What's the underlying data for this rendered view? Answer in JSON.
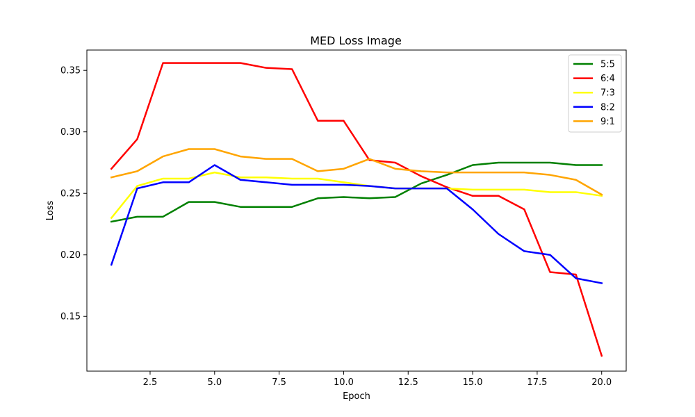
{
  "chart_data": {
    "type": "line",
    "title": "MED Loss Image",
    "xlabel": "Epoch",
    "ylabel": "Loss",
    "xlim": [
      0.05,
      20.95
    ],
    "ylim": [
      0.1055,
      0.3665
    ],
    "xticks": [
      2.5,
      5.0,
      7.5,
      10.0,
      12.5,
      15.0,
      17.5,
      20.0
    ],
    "xtick_labels": [
      "2.5",
      "5.0",
      "7.5",
      "10.0",
      "12.5",
      "15.0",
      "17.5",
      "20.0"
    ],
    "yticks": [
      0.15,
      0.2,
      0.25,
      0.3,
      0.35
    ],
    "ytick_labels": [
      "0.15",
      "0.20",
      "0.25",
      "0.30",
      "0.35"
    ],
    "grid": false,
    "legend_position": "top-right",
    "x": [
      1,
      2,
      3,
      4,
      5,
      6,
      7,
      8,
      9,
      10,
      11,
      12,
      13,
      14,
      15,
      16,
      17,
      18,
      19,
      20
    ],
    "series": [
      {
        "name": "5:5",
        "color": "#008000",
        "values": [
          0.227,
          0.231,
          0.231,
          0.243,
          0.243,
          0.239,
          0.239,
          0.239,
          0.246,
          0.247,
          0.246,
          0.247,
          0.258,
          0.265,
          0.273,
          0.275,
          0.275,
          0.275,
          0.273,
          0.273
        ]
      },
      {
        "name": "6:4",
        "color": "#ff0000",
        "values": [
          0.27,
          0.294,
          0.356,
          0.356,
          0.356,
          0.356,
          0.352,
          0.351,
          0.309,
          0.309,
          0.277,
          0.275,
          0.264,
          0.255,
          0.248,
          0.248,
          0.237,
          0.186,
          0.184,
          0.118
        ]
      },
      {
        "name": "7:3",
        "color": "#ffff00",
        "values": [
          0.23,
          0.256,
          0.262,
          0.262,
          0.267,
          0.263,
          0.263,
          0.262,
          0.262,
          0.259,
          0.256,
          0.254,
          0.254,
          0.254,
          0.253,
          0.253,
          0.253,
          0.251,
          0.251,
          0.248
        ]
      },
      {
        "name": "8:2",
        "color": "#0000ff",
        "values": [
          0.192,
          0.254,
          0.259,
          0.259,
          0.273,
          0.261,
          0.259,
          0.257,
          0.257,
          0.257,
          0.256,
          0.254,
          0.254,
          0.254,
          0.237,
          0.217,
          0.203,
          0.2,
          0.181,
          0.177
        ]
      },
      {
        "name": "9:1",
        "color": "#ffa500",
        "values": [
          0.263,
          0.268,
          0.28,
          0.286,
          0.286,
          0.28,
          0.278,
          0.278,
          0.268,
          0.27,
          0.278,
          0.27,
          0.268,
          0.267,
          0.267,
          0.267,
          0.267,
          0.265,
          0.261,
          0.249
        ]
      }
    ]
  }
}
